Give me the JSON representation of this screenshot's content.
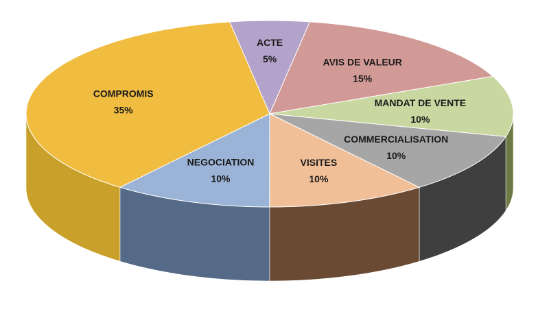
{
  "chart_data": {
    "type": "pie",
    "style": "3d",
    "labels": [
      "ACTE",
      "AVIS DE VALEUR",
      "MANDAT DE VENTE",
      "COMMERCIALISATION",
      "VISITES",
      "NEGOCIATION",
      "COMPROMIS"
    ],
    "values": [
      5,
      15,
      10,
      10,
      10,
      10,
      35
    ],
    "value_labels": [
      "5%",
      "15%",
      "10%",
      "10%",
      "10%",
      "10%",
      "35%"
    ],
    "colors": [
      "#b3a2c9",
      "#d29a97",
      "#c9d8a1",
      "#a6a6a6",
      "#f0bf98",
      "#9ab3d6",
      "#f0bd40"
    ],
    "side_colors": [
      "#6f5f80",
      "#8a4f4c",
      "#6d7a45",
      "#3f3f3f",
      "#6a4a33",
      "#556a86",
      "#c9a02a"
    ],
    "legend": "none"
  }
}
